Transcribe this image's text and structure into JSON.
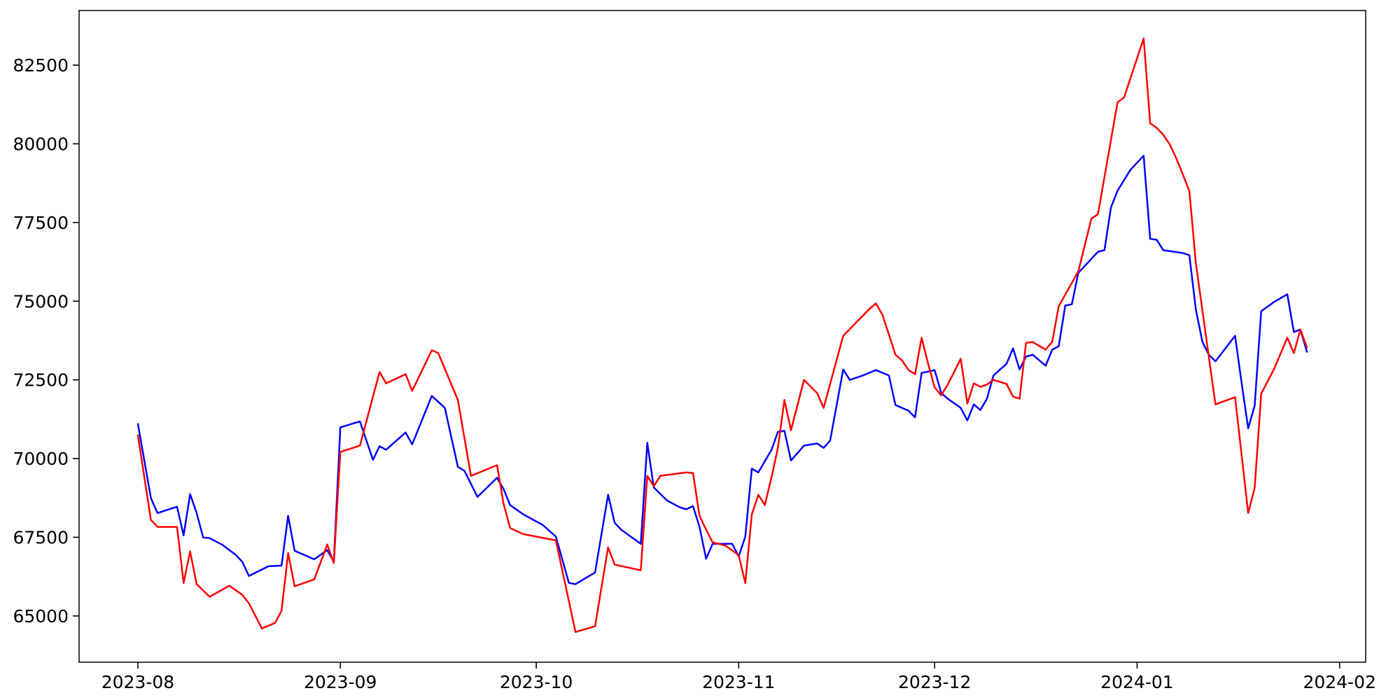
{
  "figure": {
    "background": "#ffffff",
    "frame_color": "#000000",
    "tick_color": "#000000",
    "label_color": "#000000"
  },
  "chart_data": {
    "type": "line",
    "title": "",
    "xlabel": "",
    "ylabel": "",
    "grid": false,
    "legend_position": "none",
    "xlim": [
      "2023-07-23",
      "2024-02-05"
    ],
    "ylim": [
      63530,
      84235
    ],
    "yticks": [
      65000,
      67500,
      70000,
      72500,
      75000,
      77500,
      80000,
      82500
    ],
    "xticks": [
      {
        "date": "2023-08-01",
        "label": "2023-08"
      },
      {
        "date": "2023-09-01",
        "label": "2023-09"
      },
      {
        "date": "2023-10-01",
        "label": "2023-10"
      },
      {
        "date": "2023-11-01",
        "label": "2023-11"
      },
      {
        "date": "2023-12-01",
        "label": "2023-12"
      },
      {
        "date": "2024-01-01",
        "label": "2024-01"
      },
      {
        "date": "2024-02-01",
        "label": "2024-02"
      }
    ],
    "series": [
      {
        "name": "blue",
        "color": "#0000ff",
        "line_width": 2.5,
        "points": [
          [
            "2023-08-01",
            71100
          ],
          [
            "2023-08-03",
            68740
          ],
          [
            "2023-08-04",
            68270
          ],
          [
            "2023-08-07",
            68470
          ],
          [
            "2023-08-08",
            67560
          ],
          [
            "2023-08-09",
            68870
          ],
          [
            "2023-08-10",
            68270
          ],
          [
            "2023-08-11",
            67490
          ],
          [
            "2023-08-12",
            67470
          ],
          [
            "2023-08-14",
            67250
          ],
          [
            "2023-08-16",
            66940
          ],
          [
            "2023-08-17",
            66720
          ],
          [
            "2023-08-18",
            66270
          ],
          [
            "2023-08-21",
            66580
          ],
          [
            "2023-08-23",
            66600
          ],
          [
            "2023-08-24",
            68180
          ],
          [
            "2023-08-25",
            67070
          ],
          [
            "2023-08-26",
            66980
          ],
          [
            "2023-08-28",
            66800
          ],
          [
            "2023-08-30",
            67090
          ],
          [
            "2023-08-31",
            66720
          ],
          [
            "2023-09-01",
            70990
          ],
          [
            "2023-09-04",
            71180
          ],
          [
            "2023-09-06",
            69960
          ],
          [
            "2023-09-07",
            70390
          ],
          [
            "2023-09-08",
            70280
          ],
          [
            "2023-09-11",
            70830
          ],
          [
            "2023-09-12",
            70450
          ],
          [
            "2023-09-15",
            71990
          ],
          [
            "2023-09-17",
            71610
          ],
          [
            "2023-09-19",
            69740
          ],
          [
            "2023-09-20",
            69610
          ],
          [
            "2023-09-22",
            68780
          ],
          [
            "2023-09-25",
            69390
          ],
          [
            "2023-09-26",
            69030
          ],
          [
            "2023-09-27",
            68520
          ],
          [
            "2023-09-29",
            68230
          ],
          [
            "2023-10-02",
            67890
          ],
          [
            "2023-10-04",
            67520
          ],
          [
            "2023-10-06",
            66050
          ],
          [
            "2023-10-07",
            66010
          ],
          [
            "2023-10-10",
            66380
          ],
          [
            "2023-10-12",
            68850
          ],
          [
            "2023-10-13",
            67960
          ],
          [
            "2023-10-14",
            67740
          ],
          [
            "2023-10-17",
            67290
          ],
          [
            "2023-10-18",
            70500
          ],
          [
            "2023-10-19",
            69080
          ],
          [
            "2023-10-21",
            68670
          ],
          [
            "2023-10-23",
            68450
          ],
          [
            "2023-10-24",
            68390
          ],
          [
            "2023-10-25",
            68490
          ],
          [
            "2023-10-26",
            67830
          ],
          [
            "2023-10-27",
            66820
          ],
          [
            "2023-10-28",
            67290
          ],
          [
            "2023-10-31",
            67290
          ],
          [
            "2023-11-01",
            66890
          ],
          [
            "2023-11-02",
            67520
          ],
          [
            "2023-11-03",
            69680
          ],
          [
            "2023-11-04",
            69560
          ],
          [
            "2023-11-06",
            70270
          ],
          [
            "2023-11-07",
            70850
          ],
          [
            "2023-11-08",
            70880
          ],
          [
            "2023-11-09",
            69940
          ],
          [
            "2023-11-11",
            70410
          ],
          [
            "2023-11-13",
            70480
          ],
          [
            "2023-11-14",
            70340
          ],
          [
            "2023-11-15",
            70570
          ],
          [
            "2023-11-17",
            72830
          ],
          [
            "2023-11-18",
            72500
          ],
          [
            "2023-11-20",
            72640
          ],
          [
            "2023-11-22",
            72810
          ],
          [
            "2023-11-24",
            72640
          ],
          [
            "2023-11-25",
            71700
          ],
          [
            "2023-11-27",
            71520
          ],
          [
            "2023-11-28",
            71310
          ],
          [
            "2023-11-29",
            72720
          ],
          [
            "2023-12-01",
            72810
          ],
          [
            "2023-12-02",
            72080
          ],
          [
            "2023-12-03",
            71900
          ],
          [
            "2023-12-05",
            71610
          ],
          [
            "2023-12-06",
            71210
          ],
          [
            "2023-12-07",
            71720
          ],
          [
            "2023-12-08",
            71540
          ],
          [
            "2023-12-09",
            71900
          ],
          [
            "2023-12-10",
            72640
          ],
          [
            "2023-12-12",
            73010
          ],
          [
            "2023-12-13",
            73500
          ],
          [
            "2023-12-14",
            72830
          ],
          [
            "2023-12-15",
            73240
          ],
          [
            "2023-12-16",
            73300
          ],
          [
            "2023-12-18",
            72950
          ],
          [
            "2023-12-19",
            73460
          ],
          [
            "2023-12-20",
            73570
          ],
          [
            "2023-12-21",
            74860
          ],
          [
            "2023-12-22",
            74900
          ],
          [
            "2023-12-23",
            75900
          ],
          [
            "2023-12-26",
            76570
          ],
          [
            "2023-12-27",
            76620
          ],
          [
            "2023-12-28",
            77980
          ],
          [
            "2023-12-29",
            78510
          ],
          [
            "2023-12-31",
            79180
          ],
          [
            "2024-01-02",
            79620
          ],
          [
            "2024-01-03",
            76980
          ],
          [
            "2024-01-04",
            76950
          ],
          [
            "2024-01-05",
            76620
          ],
          [
            "2024-01-08",
            76530
          ],
          [
            "2024-01-09",
            76460
          ],
          [
            "2024-01-10",
            74730
          ],
          [
            "2024-01-11",
            73700
          ],
          [
            "2024-01-12",
            73290
          ],
          [
            "2024-01-13",
            73090
          ],
          [
            "2024-01-16",
            73900
          ],
          [
            "2024-01-17",
            72410
          ],
          [
            "2024-01-18",
            70960
          ],
          [
            "2024-01-19",
            71680
          ],
          [
            "2024-01-20",
            74680
          ],
          [
            "2024-01-22",
            74980
          ],
          [
            "2024-01-24",
            75220
          ],
          [
            "2024-01-25",
            74020
          ],
          [
            "2024-01-26",
            74100
          ],
          [
            "2024-01-27",
            73390
          ]
        ]
      },
      {
        "name": "red",
        "color": "#ff0000",
        "line_width": 2.5,
        "points": [
          [
            "2023-08-01",
            70740
          ],
          [
            "2023-08-03",
            68050
          ],
          [
            "2023-08-04",
            67830
          ],
          [
            "2023-08-07",
            67830
          ],
          [
            "2023-08-08",
            66050
          ],
          [
            "2023-08-09",
            67050
          ],
          [
            "2023-08-10",
            66010
          ],
          [
            "2023-08-12",
            65610
          ],
          [
            "2023-08-15",
            65960
          ],
          [
            "2023-08-17",
            65670
          ],
          [
            "2023-08-18",
            65400
          ],
          [
            "2023-08-20",
            64600
          ],
          [
            "2023-08-22",
            64780
          ],
          [
            "2023-08-23",
            65160
          ],
          [
            "2023-08-24",
            67000
          ],
          [
            "2023-08-25",
            65940
          ],
          [
            "2023-08-28",
            66160
          ],
          [
            "2023-08-30",
            67270
          ],
          [
            "2023-08-31",
            66680
          ],
          [
            "2023-09-01",
            70210
          ],
          [
            "2023-09-04",
            70410
          ],
          [
            "2023-09-07",
            72750
          ],
          [
            "2023-09-08",
            72390
          ],
          [
            "2023-09-11",
            72680
          ],
          [
            "2023-09-12",
            72150
          ],
          [
            "2023-09-15",
            73440
          ],
          [
            "2023-09-16",
            73350
          ],
          [
            "2023-09-19",
            71860
          ],
          [
            "2023-09-21",
            69450
          ],
          [
            "2023-09-25",
            69790
          ],
          [
            "2023-09-26",
            68560
          ],
          [
            "2023-09-27",
            67790
          ],
          [
            "2023-09-29",
            67600
          ],
          [
            "2023-10-04",
            67400
          ],
          [
            "2023-10-07",
            64490
          ],
          [
            "2023-10-10",
            64670
          ],
          [
            "2023-10-12",
            67180
          ],
          [
            "2023-10-13",
            66630
          ],
          [
            "2023-10-17",
            66450
          ],
          [
            "2023-10-18",
            69450
          ],
          [
            "2023-10-19",
            69120
          ],
          [
            "2023-10-20",
            69450
          ],
          [
            "2023-10-24",
            69560
          ],
          [
            "2023-10-25",
            69540
          ],
          [
            "2023-10-26",
            68180
          ],
          [
            "2023-10-27",
            67740
          ],
          [
            "2023-10-28",
            67340
          ],
          [
            "2023-10-30",
            67230
          ],
          [
            "2023-11-01",
            66930
          ],
          [
            "2023-11-02",
            66040
          ],
          [
            "2023-11-03",
            68220
          ],
          [
            "2023-11-04",
            68850
          ],
          [
            "2023-11-05",
            68520
          ],
          [
            "2023-11-06",
            69390
          ],
          [
            "2023-11-07",
            70340
          ],
          [
            "2023-11-08",
            71860
          ],
          [
            "2023-11-09",
            70900
          ],
          [
            "2023-11-11",
            72500
          ],
          [
            "2023-11-13",
            72080
          ],
          [
            "2023-11-14",
            71610
          ],
          [
            "2023-11-17",
            73900
          ],
          [
            "2023-11-21",
            74750
          ],
          [
            "2023-11-22",
            74930
          ],
          [
            "2023-11-23",
            74570
          ],
          [
            "2023-11-25",
            73300
          ],
          [
            "2023-11-26",
            73120
          ],
          [
            "2023-11-27",
            72810
          ],
          [
            "2023-11-28",
            72680
          ],
          [
            "2023-11-29",
            73840
          ],
          [
            "2023-11-30",
            73010
          ],
          [
            "2023-12-01",
            72260
          ],
          [
            "2023-12-02",
            72010
          ],
          [
            "2023-12-03",
            72350
          ],
          [
            "2023-12-05",
            73170
          ],
          [
            "2023-12-06",
            71750
          ],
          [
            "2023-12-07",
            72390
          ],
          [
            "2023-12-08",
            72280
          ],
          [
            "2023-12-09",
            72350
          ],
          [
            "2023-12-10",
            72500
          ],
          [
            "2023-12-12",
            72370
          ],
          [
            "2023-12-13",
            71970
          ],
          [
            "2023-12-14",
            71900
          ],
          [
            "2023-12-15",
            73680
          ],
          [
            "2023-12-16",
            73700
          ],
          [
            "2023-12-18",
            73460
          ],
          [
            "2023-12-19",
            73710
          ],
          [
            "2023-12-20",
            74840
          ],
          [
            "2023-12-23",
            75950
          ],
          [
            "2023-12-25",
            77620
          ],
          [
            "2023-12-26",
            77760
          ],
          [
            "2023-12-29",
            81320
          ],
          [
            "2023-12-30",
            81470
          ],
          [
            "2024-01-02",
            83350
          ],
          [
            "2024-01-03",
            80650
          ],
          [
            "2024-01-04",
            80510
          ],
          [
            "2024-01-05",
            80290
          ],
          [
            "2024-01-06",
            79980
          ],
          [
            "2024-01-07",
            79540
          ],
          [
            "2024-01-08",
            79020
          ],
          [
            "2024-01-09",
            78500
          ],
          [
            "2024-01-10",
            76200
          ],
          [
            "2024-01-11",
            74700
          ],
          [
            "2024-01-12",
            73200
          ],
          [
            "2024-01-13",
            71720
          ],
          [
            "2024-01-16",
            71950
          ],
          [
            "2024-01-18",
            68270
          ],
          [
            "2024-01-19",
            69070
          ],
          [
            "2024-01-20",
            72060
          ],
          [
            "2024-01-22",
            72860
          ],
          [
            "2024-01-24",
            73840
          ],
          [
            "2024-01-25",
            73350
          ],
          [
            "2024-01-26",
            74100
          ],
          [
            "2024-01-27",
            73530
          ]
        ]
      }
    ]
  }
}
